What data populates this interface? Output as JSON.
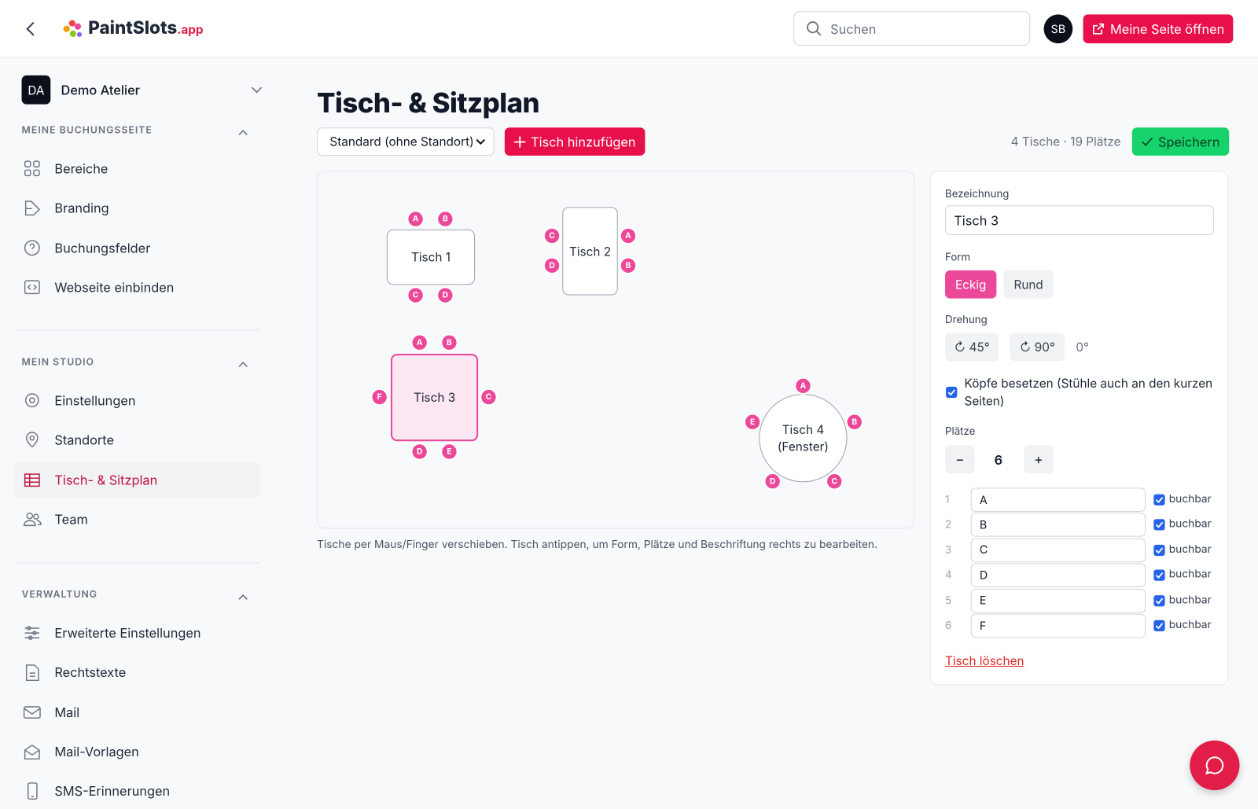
{
  "header": {
    "logo_name": "PaintSlots",
    "logo_suffix": ".app",
    "search_placeholder": "Suchen",
    "avatar": "SB",
    "open_site": "Meine Seite öffnen"
  },
  "sidebar": {
    "workspace_initials": "DA",
    "workspace_name": "Demo Atelier",
    "sections": [
      {
        "title": "MEINE BUCHUNGSSEITE",
        "items": [
          "Bereiche",
          "Branding",
          "Buchungsfelder",
          "Webseite einbinden"
        ]
      },
      {
        "title": "MEIN STUDIO",
        "items": [
          "Einstellungen",
          "Standorte",
          "Tisch- & Sitzplan",
          "Team"
        ]
      },
      {
        "title": "VERWALTUNG",
        "items": [
          "Erweiterte Einstellungen",
          "Rechtstexte",
          "Mail",
          "Mail-Vorlagen",
          "SMS-Erinnerungen"
        ]
      }
    ],
    "active_item": "Tisch- & Sitzplan"
  },
  "page": {
    "title": "Tisch- & Sitzplan",
    "location": "Standard (ohne Standort)",
    "add_table": "Tisch hinzufügen",
    "summary": "4 Tische · 19 Plätze",
    "save": "Speichern",
    "hint": "Tische per Maus/Finger verschieben. Tisch antippen, um Form, Plätze und Beschriftung rechts zu bearbeiten."
  },
  "floor": {
    "tables": [
      {
        "label": "Tisch 1",
        "shape": "rect",
        "seats": [
          "A",
          "B",
          "C",
          "D"
        ]
      },
      {
        "label": "Tisch 2",
        "shape": "rect",
        "seats": [
          "A",
          "B",
          "C",
          "D"
        ]
      },
      {
        "label": "Tisch 3",
        "shape": "rect",
        "seats": [
          "A",
          "B",
          "C",
          "D",
          "E",
          "F"
        ]
      },
      {
        "label": "Tisch 4 (Fenster)",
        "shape": "round",
        "seats": [
          "A",
          "B",
          "C",
          "D",
          "E"
        ]
      }
    ],
    "selected": 2
  },
  "editor": {
    "name_label": "Bezeichnung",
    "name": "Tisch 3",
    "form_label": "Form",
    "forms": [
      "Eckig",
      "Rund"
    ],
    "active_form": 0,
    "rotation_label": "Drehung",
    "rotations": [
      "↻ 45°",
      "↻ 90°"
    ],
    "rotation": "0°",
    "heads_label": "Köpfe besetzen (Stühle auch an den kurzen Seiten)",
    "heads": true,
    "seats_label": "Plätze",
    "minus": "−",
    "count": 6,
    "plus": "+",
    "seats": [
      {
        "number": 1,
        "name": "A",
        "bookable": "buchbar"
      },
      {
        "number": 2,
        "name": "B",
        "bookable": "buchbar"
      },
      {
        "number": 3,
        "name": "C",
        "bookable": "buchbar"
      },
      {
        "number": 4,
        "name": "D",
        "bookable": "buchbar"
      },
      {
        "number": 5,
        "name": "E",
        "bookable": "buchbar"
      },
      {
        "number": 6,
        "name": "F",
        "bookable": "buchbar"
      }
    ],
    "delete": "Tisch löschen"
  }
}
